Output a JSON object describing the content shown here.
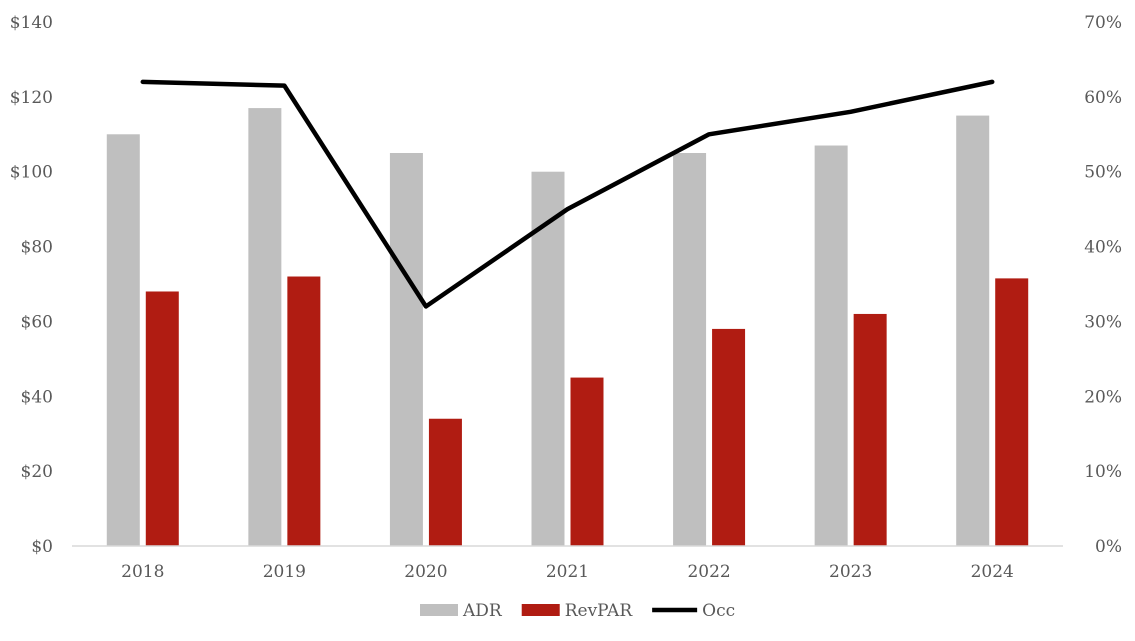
{
  "chart_data": {
    "type": "bar",
    "categories": [
      "2018",
      "2019",
      "2020",
      "2021",
      "2022",
      "2023",
      "2024"
    ],
    "series": [
      {
        "name": "ADR",
        "kind": "bar",
        "axis": "left",
        "color": "#BFBFBF",
        "values": [
          110,
          117,
          105,
          100,
          105,
          107,
          115
        ]
      },
      {
        "name": "RevPAR",
        "kind": "bar",
        "axis": "left",
        "color": "#B01C12",
        "values": [
          68,
          72,
          34,
          45,
          58,
          62,
          71.5
        ]
      },
      {
        "name": "Occ",
        "kind": "line",
        "axis": "right",
        "color": "#000000",
        "values": [
          0.62,
          0.615,
          0.32,
          0.45,
          0.55,
          0.58,
          0.62
        ]
      }
    ],
    "left_axis": {
      "ylim": [
        0,
        140
      ],
      "ticks": [
        0,
        20,
        40,
        60,
        80,
        100,
        120,
        140
      ],
      "tick_labels": [
        "$0",
        "$20",
        "$40",
        "$60",
        "$80",
        "$100",
        "$120",
        "$140"
      ]
    },
    "right_axis": {
      "ylim": [
        0,
        0.7
      ],
      "ticks": [
        0,
        0.1,
        0.2,
        0.3,
        0.4,
        0.5,
        0.6,
        0.7
      ],
      "tick_labels": [
        "0%",
        "10%",
        "20%",
        "30%",
        "40%",
        "50%",
        "60%",
        "70%"
      ]
    },
    "legend": {
      "position": "bottom",
      "entries": [
        "ADR",
        "RevPAR",
        "Occ"
      ]
    },
    "grid": false
  }
}
